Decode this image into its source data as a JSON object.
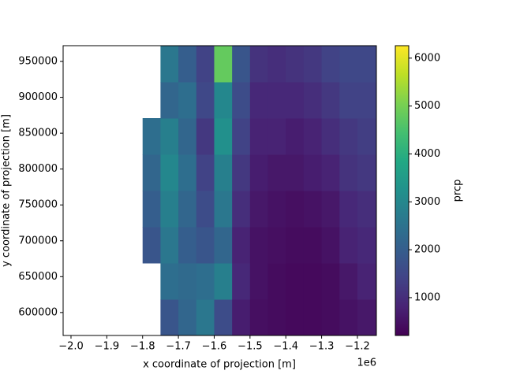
{
  "chart_data": {
    "type": "heatmap",
    "x_label": "x coordinate of projection [m]",
    "y_label": "y coordinate of projection [m]",
    "x_offset_label": "1e6",
    "colorbar_label": "prcp",
    "colormap": "viridis",
    "x_edges": [
      -1800000,
      -1750000,
      -1700000,
      -1650000,
      -1600000,
      -1550000,
      -1500000,
      -1450000,
      -1400000,
      -1350000,
      -1300000,
      -1250000,
      -1200000,
      -1147000
    ],
    "y_edges": [
      568000,
      618500,
      669000,
      719500,
      770000,
      820500,
      871000,
      921500,
      972000
    ],
    "values": [
      [
        null,
        1800,
        2200,
        2600,
        1600,
        700,
        450,
        400,
        350,
        350,
        400,
        500,
        600
      ],
      [
        null,
        2400,
        2300,
        2400,
        2800,
        900,
        500,
        400,
        350,
        350,
        400,
        600,
        800
      ],
      [
        1800,
        2600,
        2000,
        1800,
        2200,
        800,
        500,
        450,
        400,
        400,
        500,
        800,
        900
      ],
      [
        2000,
        2800,
        2200,
        1600,
        2600,
        1000,
        600,
        500,
        450,
        500,
        600,
        900,
        1000
      ],
      [
        2200,
        3000,
        2400,
        1400,
        2800,
        1200,
        700,
        600,
        600,
        700,
        800,
        1100,
        1200
      ],
      [
        2400,
        2800,
        2200,
        1200,
        3200,
        1400,
        800,
        800,
        700,
        800,
        1000,
        1200,
        1300
      ],
      [
        null,
        2200,
        2400,
        1500,
        3000,
        1600,
        900,
        900,
        900,
        1000,
        1200,
        1400,
        1400
      ],
      [
        null,
        2600,
        2000,
        1400,
        4800,
        1800,
        1100,
        1000,
        1100,
        1200,
        1400,
        1500,
        1500
      ]
    ],
    "xlim": [
      -2022000,
      -1147000
    ],
    "ylim": [
      568000,
      972000
    ],
    "clim": [
      210,
      6260
    ],
    "xticks": [
      {
        "value": -2000000,
        "label": "−2.0"
      },
      {
        "value": -1900000,
        "label": "−1.9"
      },
      {
        "value": -1800000,
        "label": "−1.8"
      },
      {
        "value": -1700000,
        "label": "−1.7"
      },
      {
        "value": -1600000,
        "label": "−1.6"
      },
      {
        "value": -1500000,
        "label": "−1.5"
      },
      {
        "value": -1400000,
        "label": "−1.4"
      },
      {
        "value": -1300000,
        "label": "−1.3"
      },
      {
        "value": -1200000,
        "label": "−1.2"
      }
    ],
    "yticks": [
      600000,
      650000,
      700000,
      750000,
      800000,
      850000,
      900000,
      950000
    ],
    "cticks": [
      1000,
      2000,
      3000,
      4000,
      5000,
      6000
    ]
  }
}
